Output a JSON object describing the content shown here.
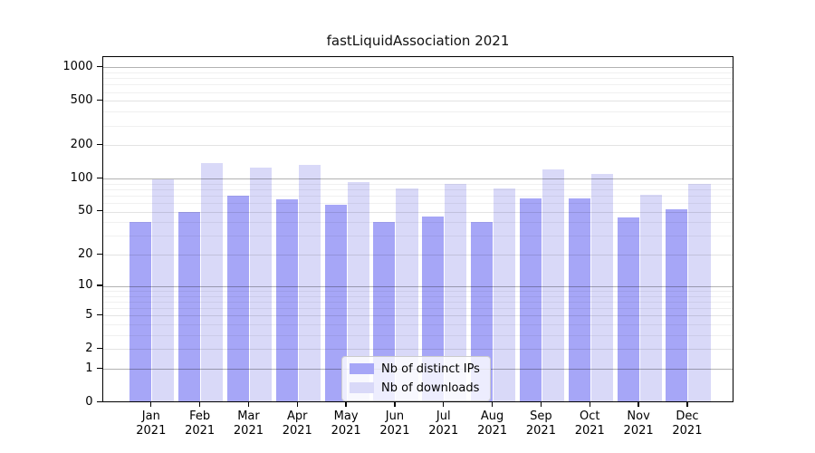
{
  "title": "fastLiquidAssociation 2021",
  "chart_data": {
    "type": "bar",
    "title": "fastLiquidAssociation 2021",
    "categories": [
      "Jan 2021",
      "Feb 2021",
      "Mar 2021",
      "Apr 2021",
      "May 2021",
      "Jun 2021",
      "Jul 2021",
      "Aug 2021",
      "Sep 2021",
      "Oct 2021",
      "Nov 2021",
      "Dec 2021"
    ],
    "series": [
      {
        "name": "Nb of distinct IPs",
        "color": "#a6a6f7",
        "values": [
          40,
          50,
          70,
          65,
          58,
          40,
          45,
          40,
          66,
          66,
          44,
          53
        ]
      },
      {
        "name": "Nb of downloads",
        "color": "#d9d9f8",
        "values": [
          98,
          137,
          126,
          133,
          93,
          81,
          90,
          81,
          120,
          110,
          71,
          89
        ]
      }
    ],
    "y_axis": {
      "scale": "log1p",
      "tick_labels": [
        "0",
        "1",
        "2",
        "5",
        "10",
        "20",
        "50",
        "100",
        "200",
        "500",
        "1000"
      ],
      "tick_values": [
        0,
        1,
        2,
        5,
        10,
        20,
        50,
        100,
        200,
        500,
        1000
      ],
      "range": [
        0,
        1250
      ],
      "grid": true
    },
    "x_axis": {
      "tick_label_months": [
        "Jan",
        "Feb",
        "Mar",
        "Apr",
        "May",
        "Jun",
        "Jul",
        "Aug",
        "Sep",
        "Oct",
        "Nov",
        "Dec"
      ],
      "tick_label_year": "2021"
    },
    "legend": {
      "position": "lower-center"
    },
    "colors": {
      "bar_distinct_ips": "#a6a6f7",
      "bar_downloads": "#d9d9f8",
      "grid_major": "#b2b2b2",
      "grid_minor": "#ededed",
      "spine": "#000000"
    }
  }
}
